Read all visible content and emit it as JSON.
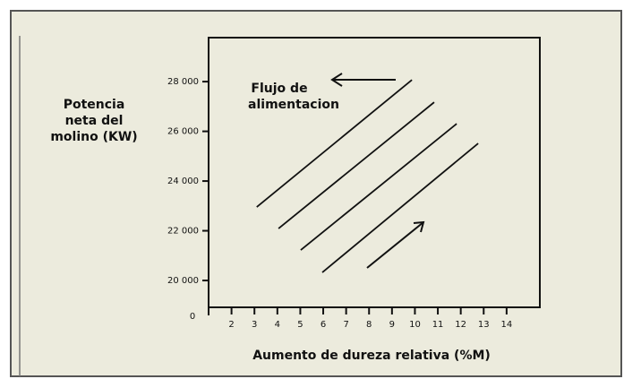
{
  "chart_data": {
    "type": "line",
    "y_label": [
      "Potencia",
      "neta del",
      "molino (KW)"
    ],
    "x_label": "Aumento de dureza relativa (%M)",
    "annotation": [
      "Flujo de",
      "alimentacion"
    ],
    "origin_label": "0",
    "color": "#111111",
    "series": [
      {
        "x": [
          3.1,
          9.87
        ],
        "values": [
          22955,
          28070
        ]
      },
      {
        "x": [
          4.05,
          10.84
        ],
        "values": [
          22090,
          27170
        ]
      },
      {
        "x": [
          5.02,
          11.82
        ],
        "values": [
          21225,
          26305
        ]
      },
      {
        "x": [
          5.96,
          12.76
        ],
        "values": [
          20325,
          25515
        ]
      }
    ],
    "xlim": [
      1,
      15.45
    ],
    "ylim": [
      18920,
      29770
    ],
    "xticks": [
      2,
      3,
      4,
      5,
      6,
      7,
      8,
      9,
      10,
      11,
      12,
      13,
      14
    ],
    "yticks": [
      {
        "value": 20000,
        "label": "20 000"
      },
      {
        "value": 22000,
        "label": "22 000"
      },
      {
        "value": 24000,
        "label": "24 000"
      },
      {
        "value": 26000,
        "label": "26 000"
      },
      {
        "value": 28000,
        "label": "28 000"
      }
    ]
  }
}
